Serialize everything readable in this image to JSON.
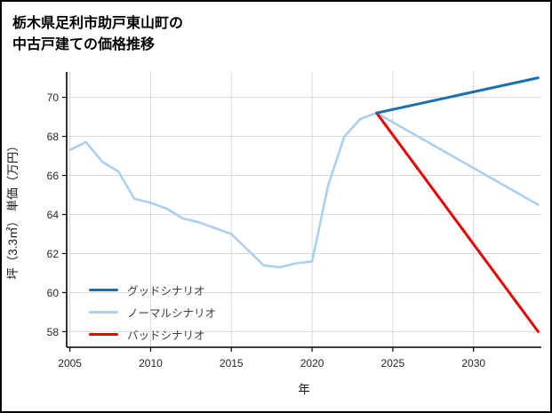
{
  "title": {
    "line1": "栃木県足利市助戸東山町の",
    "line2": "中古戸建ての価格推移"
  },
  "chart_data": {
    "type": "line",
    "title": "栃木県足利市助戸東山町の中古戸建ての価格推移",
    "xlabel": "年",
    "ylabel": "坪（3.3㎡） 単価（万円）",
    "xlim": [
      2004.8,
      2034.2
    ],
    "ylim": [
      57.2,
      71.3
    ],
    "xticks": [
      2005,
      2010,
      2015,
      2020,
      2025,
      2030
    ],
    "yticks": [
      58,
      60,
      62,
      64,
      66,
      68,
      70
    ],
    "grid": true,
    "legend_position": "lower-left",
    "colors": {
      "grid": "#d9d9d9",
      "axis": "#000000",
      "tick_text": "#262626"
    },
    "series": [
      {
        "name": "グッドシナリオ",
        "color": "#1a6fb0",
        "width": 3,
        "x": [
          2024,
          2034
        ],
        "y": [
          69.2,
          71.0
        ]
      },
      {
        "name": "ノーマルシナリオ",
        "color": "#abcfee",
        "width": 2.6,
        "x": [
          2005,
          2006,
          2007,
          2008,
          2009,
          2010,
          2011,
          2012,
          2013,
          2014,
          2015,
          2016,
          2017,
          2018,
          2019,
          2020,
          2021,
          2022,
          2023,
          2024,
          2034
        ],
        "y": [
          67.3,
          67.7,
          66.7,
          66.2,
          64.8,
          64.6,
          64.3,
          63.8,
          63.6,
          63.3,
          63.0,
          62.2,
          61.4,
          61.3,
          61.5,
          61.6,
          65.5,
          68.0,
          68.9,
          69.2,
          64.5
        ]
      },
      {
        "name": "バッドシナリオ",
        "color": "#e60000",
        "width": 3,
        "x": [
          2024,
          2034
        ],
        "y": [
          69.2,
          58.0
        ]
      }
    ]
  }
}
